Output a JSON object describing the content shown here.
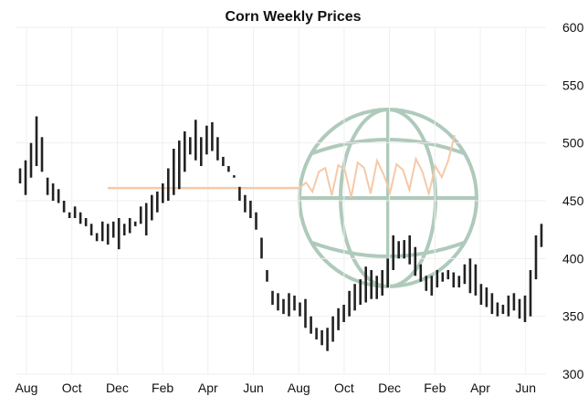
{
  "chart_data": {
    "type": "bar",
    "subtype": "price-range (high-low) weekly bars",
    "title": "Corn Weekly Prices",
    "xlabel": "",
    "ylabel": "",
    "y_axis_side": "right",
    "ylim": [
      300,
      600
    ],
    "yticks": [
      300,
      350,
      400,
      450,
      500,
      550,
      600
    ],
    "xticks": [
      "Aug",
      "Oct",
      "Dec",
      "Feb",
      "Apr",
      "Jun",
      "Aug",
      "Oct",
      "Dec",
      "Feb",
      "Apr",
      "Jun"
    ],
    "grid": true,
    "series": [
      {
        "low": [
          465,
          455,
          470,
          480,
          475,
          455,
          450,
          448,
          440,
          435,
          435,
          430,
          428,
          420,
          415,
          415,
          412,
          418,
          408,
          420,
          422,
          428,
          430,
          420,
          433,
          440,
          448,
          450,
          455,
          460,
          475,
          490,
          485,
          480,
          490,
          493,
          485,
          480,
          475,
          470,
          450,
          440,
          435,
          425,
          400,
          380,
          360,
          355,
          352,
          350,
          355,
          350,
          340,
          335,
          330,
          325,
          320,
          328,
          338,
          345,
          350,
          355,
          360,
          362,
          365,
          365,
          368,
          375,
          390,
          400,
          400,
          395,
          385,
          380,
          372,
          368,
          375,
          380,
          382,
          375,
          375,
          378,
          370,
          368,
          360,
          358,
          352,
          350,
          352,
          350,
          355,
          348,
          345,
          350,
          382,
          410
        ],
        "high": [
          478,
          485,
          500,
          523,
          505,
          470,
          465,
          460,
          450,
          440,
          445,
          440,
          435,
          430,
          422,
          432,
          430,
          432,
          435,
          430,
          435,
          432,
          445,
          448,
          455,
          458,
          465,
          478,
          495,
          502,
          510,
          505,
          520,
          505,
          515,
          518,
          505,
          488,
          480,
          472,
          462,
          455,
          450,
          440,
          418,
          390,
          372,
          370,
          365,
          370,
          368,
          362,
          365,
          350,
          340,
          338,
          340,
          350,
          357,
          360,
          372,
          378,
          382,
          393,
          390,
          385,
          390,
          400,
          420,
          415,
          416,
          420,
          410,
          395,
          385,
          385,
          390,
          388,
          390,
          388,
          385,
          395,
          400,
          395,
          378,
          375,
          370,
          362,
          360,
          368,
          370,
          365,
          368,
          390,
          420,
          430
        ]
      }
    ],
    "overlay": {
      "icon": "globe-icon",
      "flat_line_value": 461,
      "color_line": "#f5c9a8",
      "color_globe": "#6f9f84"
    }
  }
}
